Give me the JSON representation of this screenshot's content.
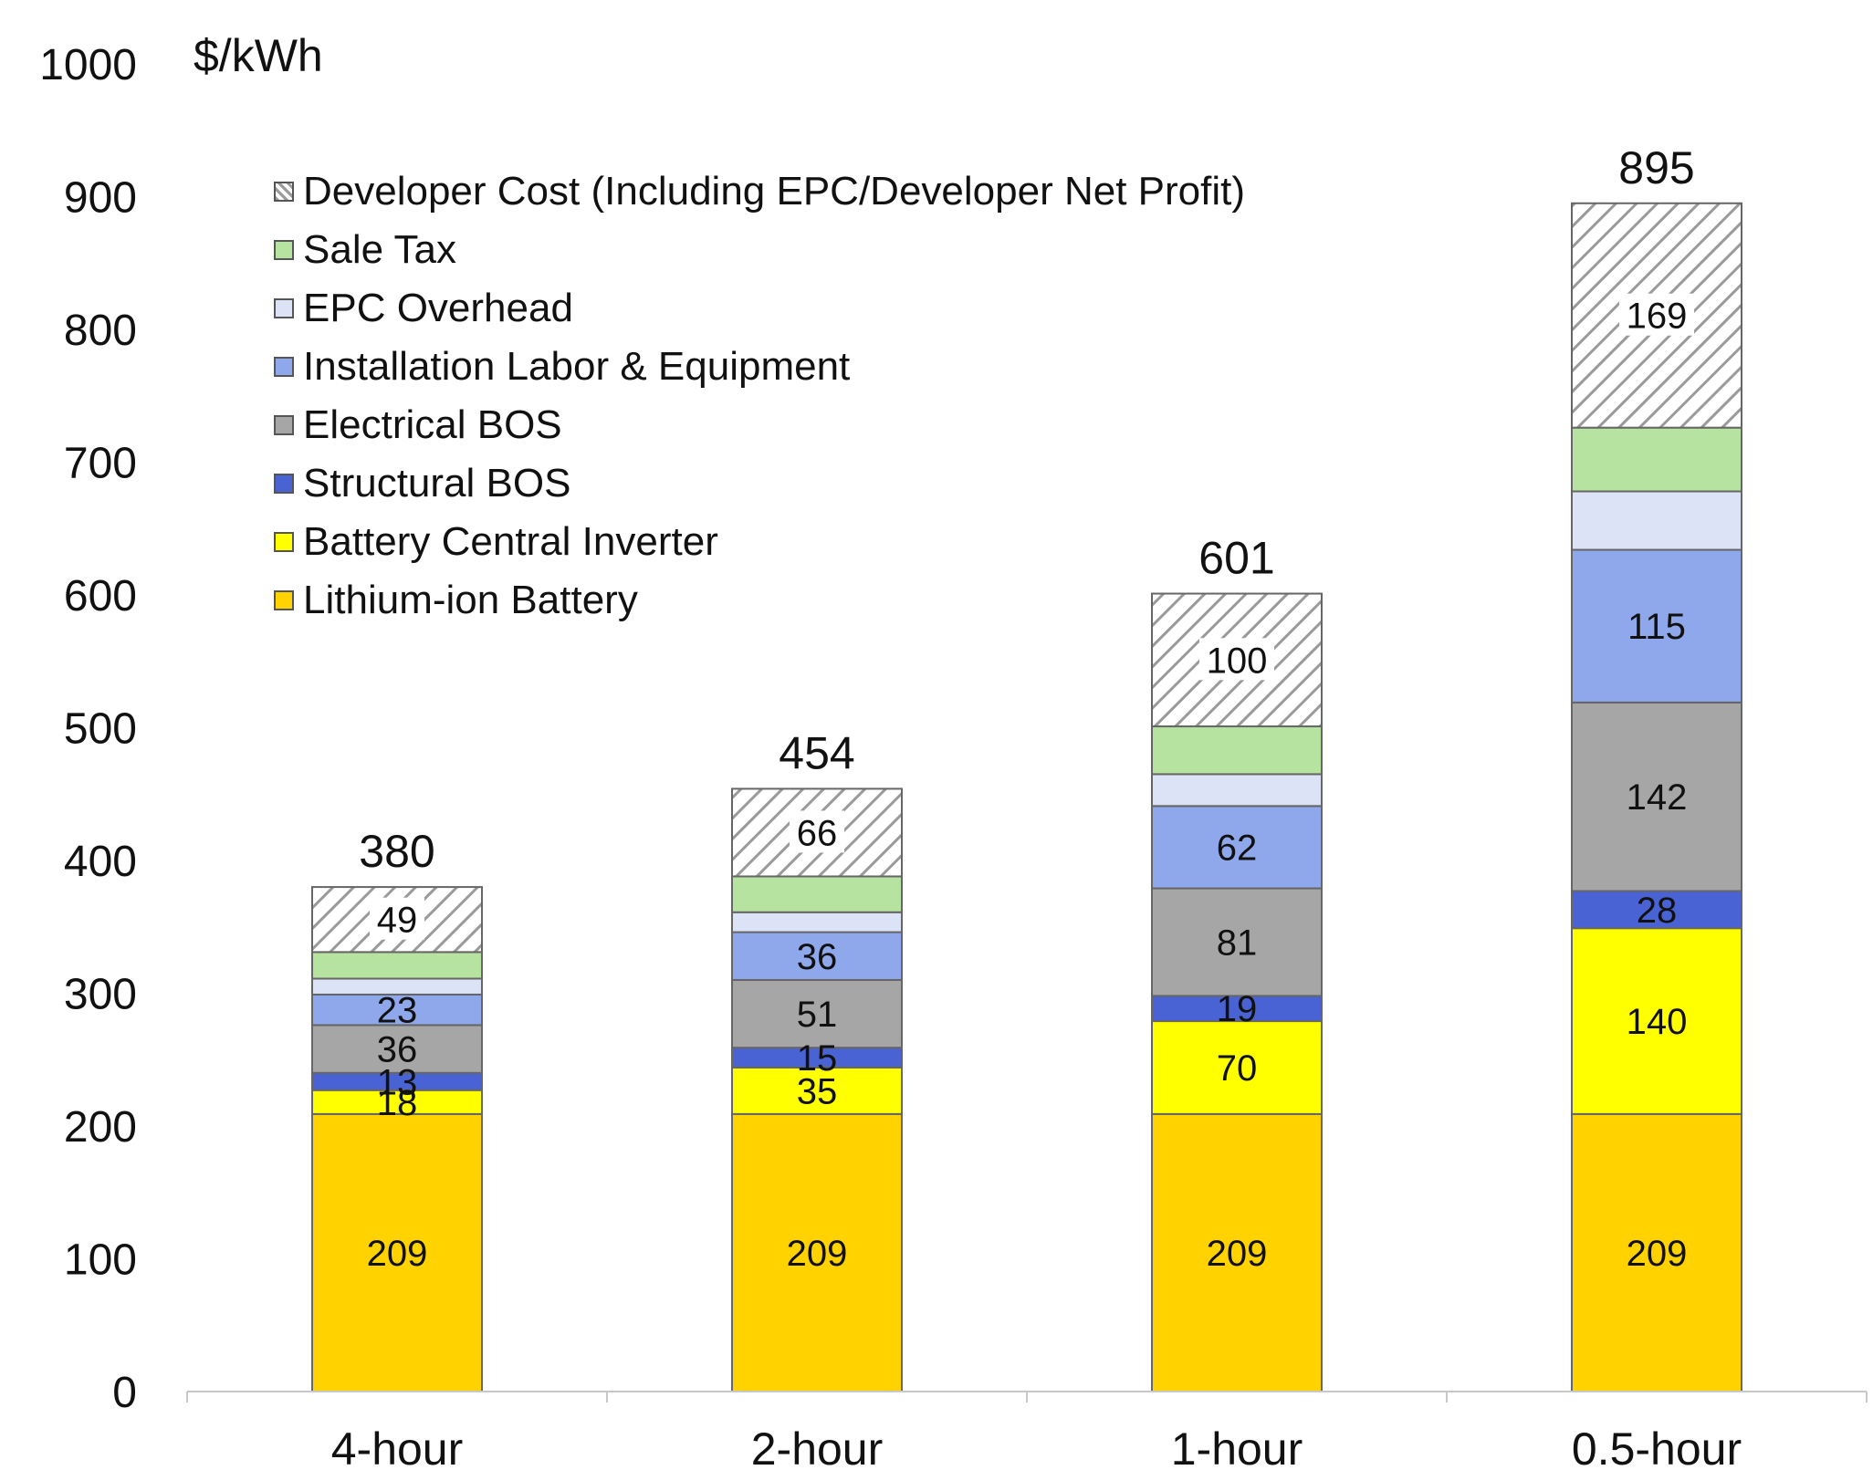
{
  "chart_data": {
    "type": "bar",
    "stacked": true,
    "title": "",
    "ylabel": "$/kWh",
    "xlabel": "",
    "ylim": [
      0,
      1000
    ],
    "yticks": [
      0,
      100,
      200,
      300,
      400,
      500,
      600,
      700,
      800,
      900,
      1000
    ],
    "categories": [
      "4-hour",
      "2-hour",
      "1-hour",
      "0.5-hour"
    ],
    "totals": [
      380,
      454,
      601,
      895
    ],
    "legend_position": "top-left",
    "series": [
      {
        "name": "Lithium-ion Battery",
        "color": "#FFD200",
        "pattern": "solid",
        "values": [
          209,
          209,
          209,
          209
        ],
        "labels": [
          "209",
          "209",
          "209",
          "209"
        ]
      },
      {
        "name": "Battery Central Inverter",
        "color": "#FFFF00",
        "pattern": "solid",
        "values": [
          18,
          35,
          70,
          140
        ],
        "labels": [
          "18",
          "35",
          "70",
          "140"
        ]
      },
      {
        "name": "Structural BOS",
        "color": "#4A63D4",
        "pattern": "solid",
        "values": [
          13,
          15,
          19,
          28
        ],
        "labels": [
          "13",
          "15",
          "19",
          "28"
        ]
      },
      {
        "name": "Electrical BOS",
        "color": "#A6A6A6",
        "pattern": "solid",
        "values": [
          36,
          51,
          81,
          142
        ],
        "labels": [
          "36",
          "51",
          "81",
          "142"
        ]
      },
      {
        "name": "Installation Labor & Equipment",
        "color": "#8FA8EC",
        "pattern": "solid",
        "values": [
          23,
          36,
          62,
          115
        ],
        "labels": [
          "23",
          "36",
          "62",
          "115"
        ]
      },
      {
        "name": "EPC Overhead",
        "color": "#DCE3F6",
        "pattern": "solid",
        "values": [
          12,
          15,
          24,
          44
        ],
        "labels": [
          "",
          "",
          "",
          ""
        ]
      },
      {
        "name": "Sale Tax",
        "color": "#B7E3A0",
        "pattern": "solid",
        "values": [
          20,
          27,
          36,
          48
        ],
        "labels": [
          "",
          "",
          "",
          ""
        ]
      },
      {
        "name": "Developer Cost (Including EPC/Developer Net Profit)",
        "color": "#FFFFFF",
        "pattern": "hatch",
        "values": [
          49,
          66,
          100,
          169
        ],
        "labels": [
          "49",
          "66",
          "100",
          "169"
        ]
      }
    ]
  }
}
